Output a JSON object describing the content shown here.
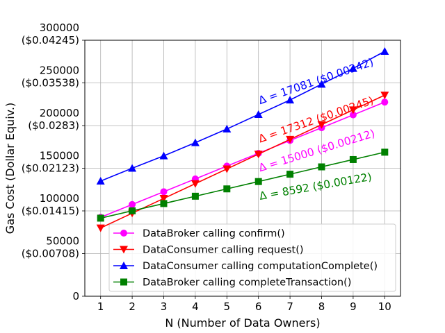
{
  "chart_data": {
    "type": "line",
    "title": "",
    "xlabel": "N (Number of Data Owners)",
    "ylabel": "Gas Cost (Dollar Equiv.)",
    "xlim": [
      0.5,
      10.5
    ],
    "ylim": [
      0,
      300000
    ],
    "grid": true,
    "legend_position": "lower-right",
    "x": [
      1,
      2,
      3,
      4,
      5,
      6,
      7,
      8,
      9,
      10
    ],
    "x_ticks": [
      "1",
      "2",
      "3",
      "4",
      "5",
      "6",
      "7",
      "8",
      "9",
      "10"
    ],
    "y_ticks": [
      {
        "value": 0,
        "lines": [
          "0"
        ]
      },
      {
        "value": 50000,
        "lines": [
          "50000",
          "($0.00708)"
        ]
      },
      {
        "value": 100000,
        "lines": [
          "100000",
          "($0.01415)"
        ]
      },
      {
        "value": 150000,
        "lines": [
          "150000",
          "($0.02123)"
        ]
      },
      {
        "value": 200000,
        "lines": [
          "200000",
          "($0.0283)"
        ]
      },
      {
        "value": 250000,
        "lines": [
          "250000",
          "($0.03538)"
        ]
      },
      {
        "value": 300000,
        "lines": [
          "300000",
          "($0.04245)"
        ]
      }
    ],
    "series": [
      {
        "name": "DataBroker calling confirm()",
        "color": "#ff00ff",
        "marker": "circle",
        "values": [
          92500,
          107500,
          122500,
          137500,
          152500,
          167500,
          182500,
          197500,
          212500,
          227500
        ]
      },
      {
        "name": "DataConsumer calling request()",
        "color": "#ff0000",
        "marker": "triangle-down",
        "values": [
          80000,
          97300,
          114600,
          131900,
          149200,
          166500,
          183800,
          201100,
          218400,
          235700
        ]
      },
      {
        "name": "DataConsumer calling computationComplete()",
        "color": "#0000ff",
        "marker": "triangle-up",
        "values": [
          135000,
          150000,
          164500,
          180000,
          196000,
          213000,
          230000,
          248500,
          267000,
          287000
        ]
      },
      {
        "name": "DataBroker calling completeTransaction()",
        "color": "#008000",
        "marker": "square",
        "values": [
          91500,
          100100,
          108600,
          117200,
          125800,
          134400,
          143000,
          151600,
          160200,
          168800
        ]
      }
    ],
    "annotations": [
      {
        "text": "Δ = 17081 ($0.00242)",
        "color": "#0000ff",
        "x": 6.05,
        "y": 225000,
        "angle": -19
      },
      {
        "text": "Δ = 17312 ($0.00245)",
        "color": "#ff0000",
        "x": 6.05,
        "y": 180000,
        "angle": -19
      },
      {
        "text": "Δ = 15000 ($0.00212)",
        "color": "#ff00ff",
        "x": 6.05,
        "y": 146000,
        "angle": -17
      },
      {
        "text": "Δ = 8592 ($0.00122)",
        "color": "#008000",
        "x": 6.05,
        "y": 113000,
        "angle": -10
      }
    ]
  }
}
